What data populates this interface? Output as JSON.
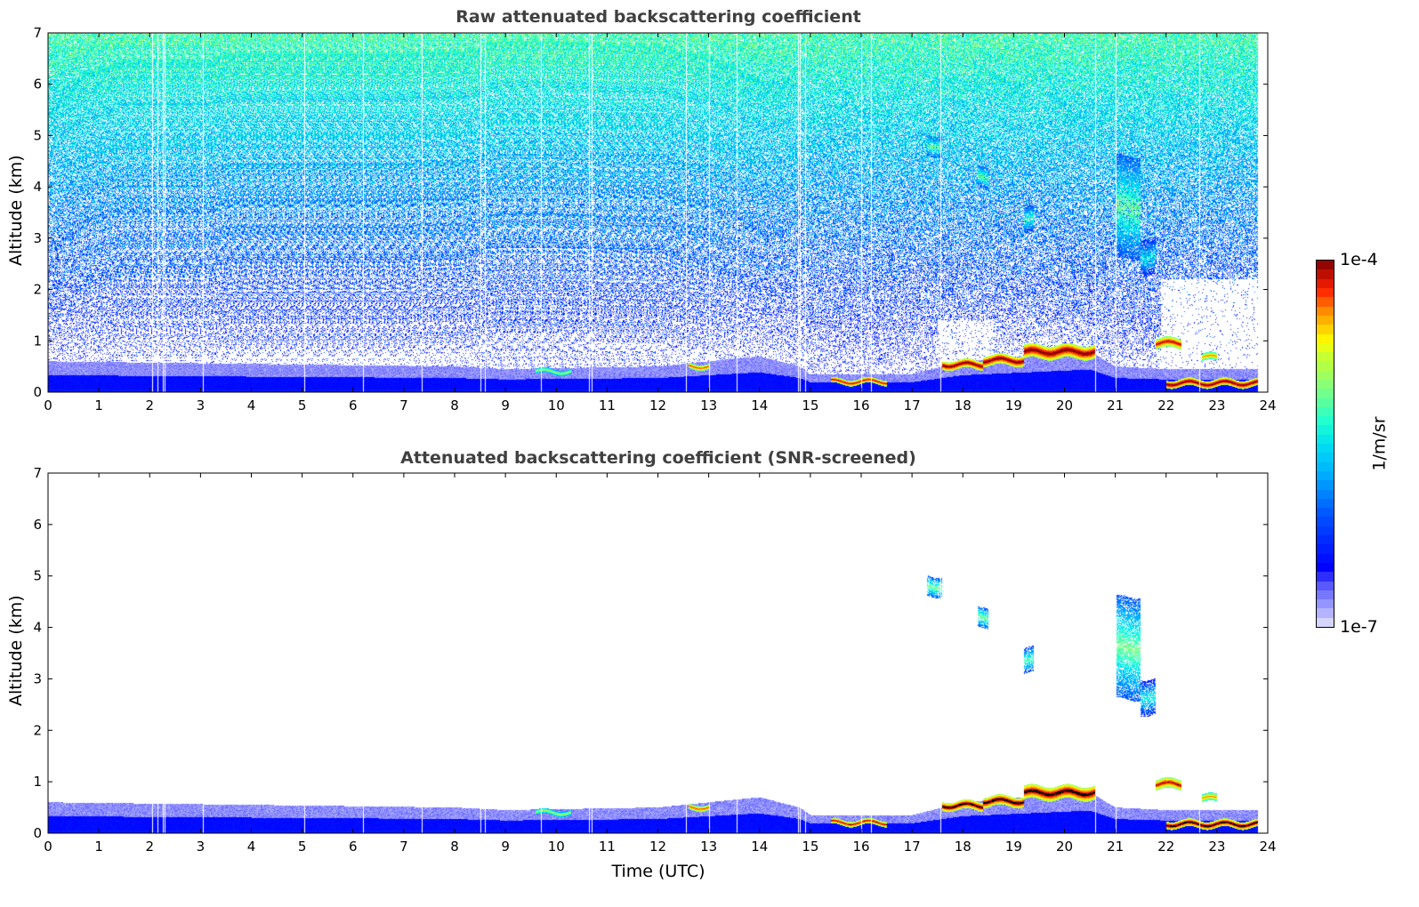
{
  "chart_data": [
    {
      "type": "heatmap",
      "title": "Raw attenuated backscattering coefficient",
      "xlabel": "",
      "ylabel": "Altitude (km)",
      "xlim": [
        0,
        24
      ],
      "ylim": [
        0,
        7
      ],
      "xticks": [
        0,
        1,
        2,
        3,
        4,
        5,
        6,
        7,
        8,
        9,
        10,
        11,
        12,
        13,
        14,
        15,
        16,
        17,
        18,
        19,
        20,
        21,
        22,
        23,
        24
      ],
      "yticks": [
        0,
        1,
        2,
        3,
        4,
        5,
        6,
        7
      ],
      "screened": false
    },
    {
      "type": "heatmap",
      "title": "Attenuated backscattering coefficient (SNR-screened)",
      "xlabel": "Time (UTC)",
      "ylabel": "Altitude (km)",
      "xlim": [
        0,
        24
      ],
      "ylim": [
        0,
        7
      ],
      "xticks": [
        0,
        1,
        2,
        3,
        4,
        5,
        6,
        7,
        8,
        9,
        10,
        11,
        12,
        13,
        14,
        15,
        16,
        17,
        18,
        19,
        20,
        21,
        22,
        23,
        24
      ],
      "yticks": [
        0,
        1,
        2,
        3,
        4,
        5,
        6,
        7
      ],
      "screened": true
    }
  ],
  "colorbar": {
    "label": "1/m/sr",
    "min_label": "1e-7",
    "max_label": "1e-4",
    "scale": "log",
    "stops": [
      [
        0.0,
        "#e6e6fa"
      ],
      [
        0.04,
        "#b0b0ff"
      ],
      [
        0.08,
        "#8080ff"
      ],
      [
        0.12,
        "#5050ff"
      ],
      [
        0.16,
        "#0000ff"
      ],
      [
        0.3,
        "#0050ff"
      ],
      [
        0.42,
        "#00b0ff"
      ],
      [
        0.5,
        "#00e0f0"
      ],
      [
        0.56,
        "#20ffd0"
      ],
      [
        0.65,
        "#80ff80"
      ],
      [
        0.74,
        "#c8ff30"
      ],
      [
        0.78,
        "#ffff00"
      ],
      [
        0.86,
        "#ff9000"
      ],
      [
        0.92,
        "#ff2000"
      ],
      [
        1.0,
        "#800000"
      ]
    ]
  },
  "signal": {
    "boundary_layer_top_km": [
      [
        0,
        0.6
      ],
      [
        8,
        0.5
      ],
      [
        9,
        0.45
      ],
      [
        12,
        0.5
      ],
      [
        14,
        0.7
      ],
      [
        14.8,
        0.5
      ],
      [
        15,
        0.35
      ],
      [
        17,
        0.35
      ],
      [
        18,
        0.6
      ],
      [
        20.5,
        0.8
      ],
      [
        21,
        0.5
      ],
      [
        22,
        0.45
      ],
      [
        24,
        0.45
      ]
    ],
    "layers": [
      {
        "t0": 9.6,
        "t1": 10.3,
        "z0": 0.35,
        "z1": 0.45,
        "level": 0.7
      },
      {
        "t0": 12.6,
        "t1": 13.0,
        "z0": 0.45,
        "z1": 0.56,
        "level": 0.9
      },
      {
        "t0": 15.4,
        "t1": 16.5,
        "z0": 0.15,
        "z1": 0.26,
        "level": 0.95
      },
      {
        "t0": 17.6,
        "t1": 18.4,
        "z0": 0.45,
        "z1": 0.62,
        "level": 1.0
      },
      {
        "t0": 18.4,
        "t1": 19.2,
        "z0": 0.52,
        "z1": 0.72,
        "level": 1.0
      },
      {
        "t0": 19.2,
        "t1": 20.6,
        "z0": 0.65,
        "z1": 0.92,
        "level": 1.0
      },
      {
        "t0": 21.8,
        "t1": 22.3,
        "z0": 0.85,
        "z1": 1.05,
        "level": 0.95
      },
      {
        "t0": 22.0,
        "t1": 23.8,
        "z0": 0.1,
        "z1": 0.25,
        "level": 1.0
      },
      {
        "t0": 22.7,
        "t1": 23.0,
        "z0": 0.6,
        "z1": 0.75,
        "level": 0.85
      },
      {
        "t0": 17.3,
        "t1": 17.6,
        "z0": 4.6,
        "z1": 5.0,
        "level": 0.62
      },
      {
        "t0": 18.3,
        "t1": 18.5,
        "z0": 4.0,
        "z1": 4.4,
        "level": 0.62
      },
      {
        "t0": 19.2,
        "t1": 19.4,
        "z0": 3.1,
        "z1": 3.6,
        "level": 0.58
      },
      {
        "t0": 21.0,
        "t1": 21.5,
        "z0": 2.6,
        "z1": 4.6,
        "level": 0.62
      },
      {
        "t0": 21.5,
        "t1": 21.8,
        "z0": 2.3,
        "z1": 3.0,
        "level": 0.52
      }
    ],
    "gap_times_h": [
      2.05,
      2.15,
      2.25,
      2.3,
      3.05,
      5.05,
      6.2,
      7.35,
      8.5,
      8.6,
      9.7,
      10.65,
      10.7,
      12.55,
      13.0,
      13.55,
      14.75,
      14.8,
      14.9,
      16.0,
      16.2,
      17.55,
      20.6,
      21.0,
      22.65
    ]
  }
}
